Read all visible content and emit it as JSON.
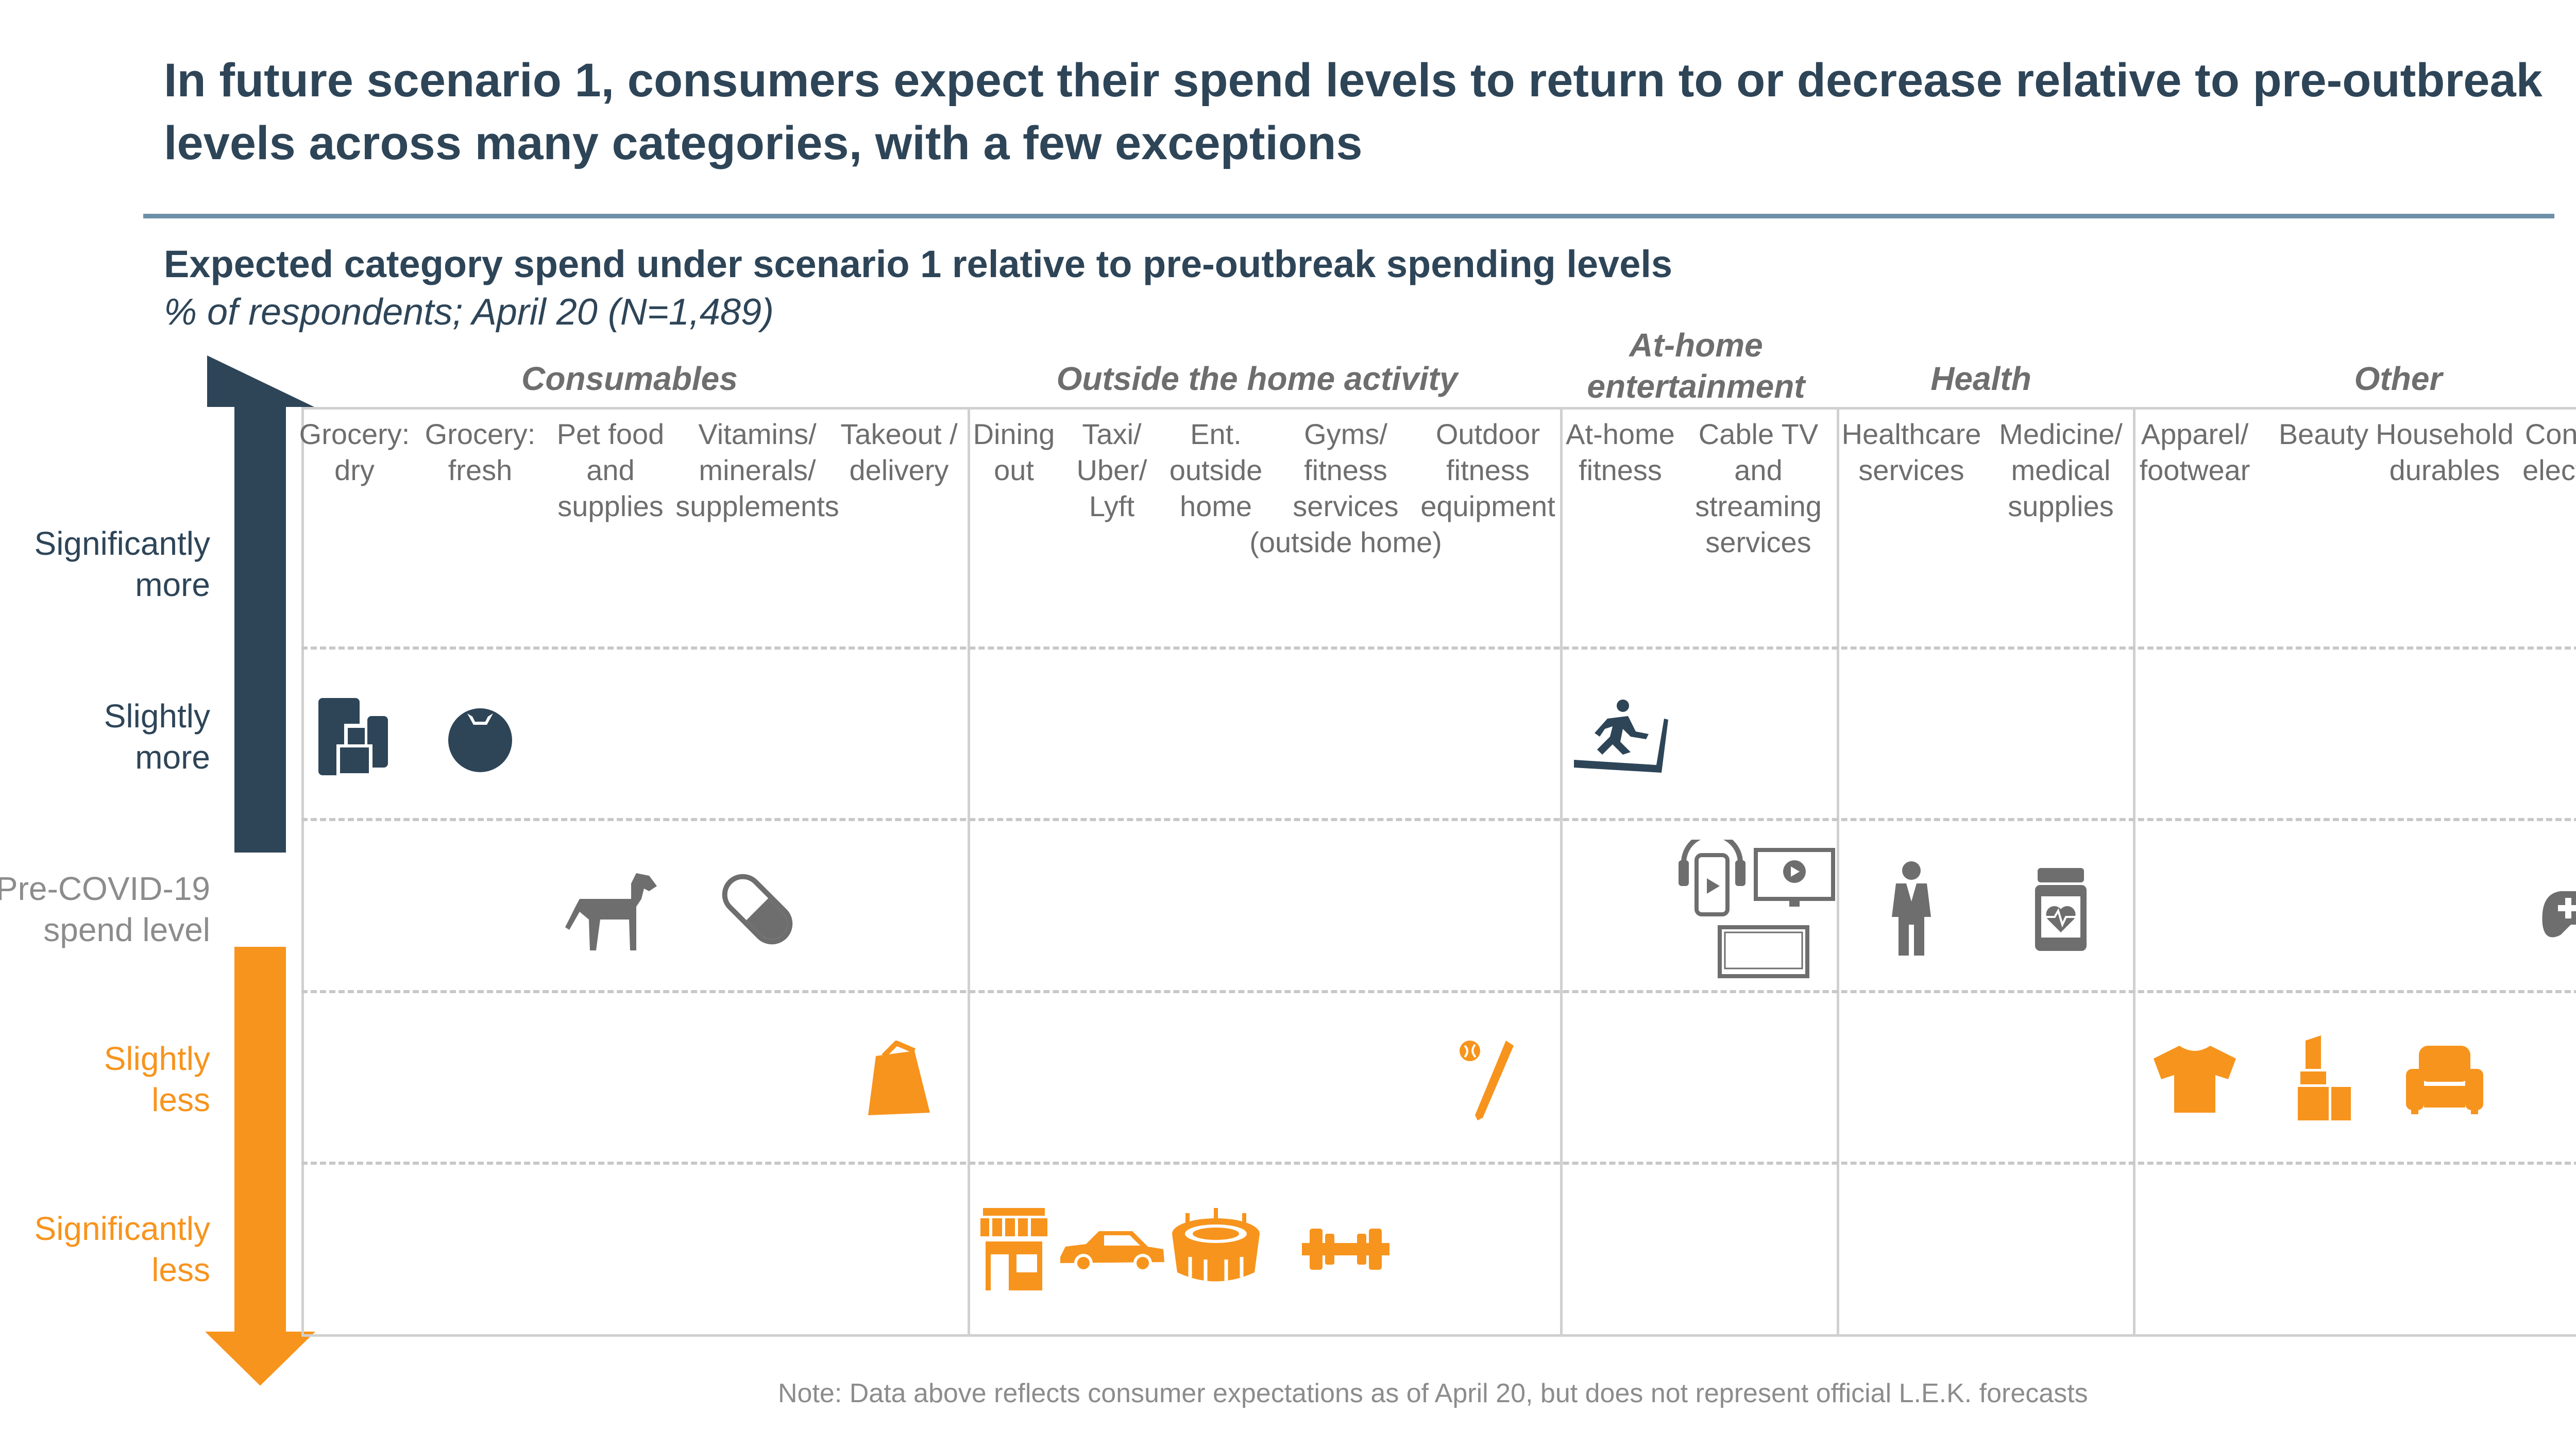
{
  "title": "In future scenario 1, consumers expect their spend levels to return to or decrease relative to pre-outbreak levels across many categories, with a few exceptions",
  "subtitle": "Expected category spend under scenario 1 relative to pre-outbreak spending levels",
  "subtitle_note": "% of respondents; April 20 (N=1,489)",
  "footnote": "Note: Data above reflects consumer expectations as of April 20, but does not represent official L.E.K. forecasts",
  "colors": {
    "navy": "#2e4558",
    "orange": "#f7941d",
    "gray": "#6e6e6e",
    "grid": "#c8c8c8"
  },
  "chart_data": {
    "type": "table",
    "y_axis": {
      "levels": [
        {
          "id": "sig_more",
          "label": "Significantly\nmore",
          "color": "#2e4558"
        },
        {
          "id": "sl_more",
          "label": "Slightly\nmore",
          "color": "#2e4558"
        },
        {
          "id": "pre",
          "label": "Pre-COVID-19\nspend level",
          "color": "#8c8c8c"
        },
        {
          "id": "sl_less",
          "label": "Slightly\nless",
          "color": "#f7941d"
        },
        {
          "id": "sig_less",
          "label": "Significantly\nless",
          "color": "#f7941d"
        }
      ]
    },
    "groups": [
      {
        "name": "Consumables",
        "columns": [
          "Grocery: dry",
          "Grocery: fresh",
          "Pet food and supplies",
          "Vitamins/ minerals/ supplements",
          "Takeout / delivery"
        ]
      },
      {
        "name": "Outside the home activity",
        "columns": [
          "Dining out",
          "Taxi/ Uber/ Lyft",
          "Ent. outside home",
          "Gyms/ fitness services (outside home)",
          "Outdoor fitness equipment"
        ]
      },
      {
        "name": "At-home entertainment",
        "columns": [
          "At-home fitness",
          "Cable TV and streaming services"
        ]
      },
      {
        "name": "Health",
        "columns": [
          "Healthcare services",
          "Medicine/ medical supplies"
        ]
      },
      {
        "name": "Other",
        "columns": [
          "Apparel/ footwear",
          "Beauty",
          "Household durables",
          "Consumer electronics"
        ]
      }
    ],
    "columns": [
      {
        "label": "Grocery:\ndry",
        "level": "sl_more",
        "icon": "grocery-bag-icon"
      },
      {
        "label": "Grocery:\nfresh",
        "level": "sl_more",
        "icon": "tomato-icon"
      },
      {
        "label": "Pet food\nand\nsupplies",
        "level": "pre",
        "icon": "dog-icon"
      },
      {
        "label": "Vitamins/\nminerals/\nsupplements",
        "level": "pre",
        "icon": "pill-icon"
      },
      {
        "label": "Takeout /\ndelivery",
        "level": "sl_less",
        "icon": "takeout-bag-icon"
      },
      {
        "label": "Dining\nout",
        "level": "sig_less",
        "icon": "storefront-icon"
      },
      {
        "label": "Taxi/\nUber/\nLyft",
        "level": "sig_less",
        "icon": "car-icon"
      },
      {
        "label": "Ent.\noutside\nhome",
        "level": "sig_less",
        "icon": "stadium-icon"
      },
      {
        "label": "Gyms/\nfitness\nservices\n(outside home)",
        "level": "sig_less",
        "icon": "dumbbell-icon"
      },
      {
        "label": "Outdoor\nfitness\nequipment",
        "level": "sl_less",
        "icon": "baseball-bat-icon"
      },
      {
        "label": "At-home\nfitness",
        "level": "sl_more",
        "icon": "treadmill-icon"
      },
      {
        "label": "Cable TV\nand\nstreaming\nservices",
        "level": "pre",
        "icon": "devices-icon"
      },
      {
        "label": "Healthcare\nservices",
        "level": "pre",
        "icon": "doctor-icon"
      },
      {
        "label": "Medicine/\nmedical\nsupplies",
        "level": "pre",
        "icon": "medicine-bottle-icon"
      },
      {
        "label": "Apparel/\nfootwear",
        "level": "sl_less",
        "icon": "shirt-icon"
      },
      {
        "label": "Beauty",
        "level": "sl_less",
        "icon": "lipstick-icon"
      },
      {
        "label": "Household\ndurables",
        "level": "sl_less",
        "icon": "armchair-icon"
      },
      {
        "label": "Consumer\nelectronics",
        "level": "pre",
        "icon": "gamepad-icon"
      }
    ]
  }
}
